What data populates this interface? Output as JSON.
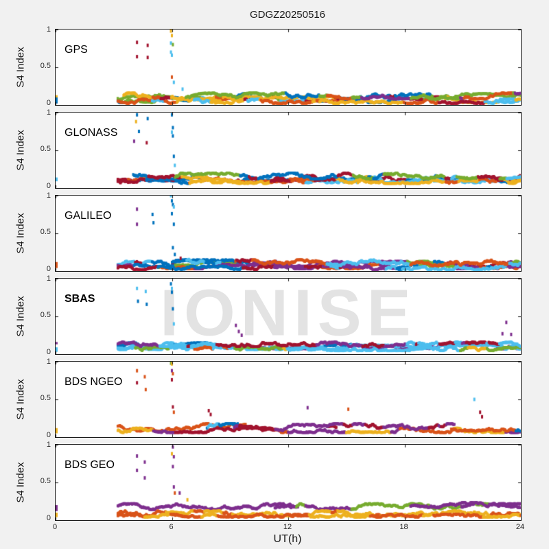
{
  "figure": {
    "title": "GDGZ20250516",
    "watermark": "IONISE",
    "xtick_labels": [
      "0",
      "6",
      "12",
      "18",
      "24"
    ],
    "ytick_labels": [
      "1",
      "0.5",
      "0"
    ]
  },
  "chart_data": {
    "type": "scatter",
    "title": "GDGZ20250516",
    "xlabel": "UT(h)",
    "ylabel": "S4 Index",
    "xlim": [
      0,
      24
    ],
    "ylim": [
      0,
      1
    ],
    "xticks": [
      0,
      6,
      12,
      18,
      24
    ],
    "yticks": [
      0,
      0.5,
      1
    ],
    "grid": false,
    "legend": "none",
    "watermark_text": "IONISE",
    "data_start_hour": 3.2,
    "palette": {
      "blue": "#0072BD",
      "orange": "#D95319",
      "yellow": "#EDB120",
      "purple": "#7E2F8E",
      "green": "#77AC30",
      "lightblue": "#4DBEEE",
      "darkred": "#A2142F"
    },
    "panels": [
      {
        "label": "GPS",
        "label_bold": false,
        "traces": [
          {
            "x0": 3.2,
            "x1": 24,
            "base": 0.1,
            "amp": 0.05,
            "colors": [
              "darkred",
              "darkred",
              "orange",
              "yellow",
              "lightblue",
              "green",
              "purple",
              "blue"
            ]
          },
          {
            "x0": 3.2,
            "x1": 24,
            "base": 0.07,
            "amp": 0.04,
            "colors": [
              "orange",
              "yellow",
              "darkred",
              "lightblue",
              "blue",
              "green"
            ]
          },
          {
            "x0": 3.2,
            "x1": 24,
            "base": 0.05,
            "amp": 0.03,
            "colors": [
              "yellow",
              "lightblue",
              "orange",
              "darkred"
            ]
          },
          {
            "x0": 3.5,
            "x1": 24,
            "base": 0.12,
            "amp": 0.04,
            "colors": [
              "darkred",
              "lightblue",
              "yellow",
              "orange",
              "purple",
              "green",
              "blue"
            ]
          }
        ],
        "edge_cluster": [
          {
            "y0": 0.1,
            "y1": 0.13,
            "color": "yellow"
          },
          {
            "y0": 0.02,
            "y1": 0.1,
            "color": "blue"
          }
        ],
        "outliers": [
          [
            4.2,
            0.83,
            "darkred"
          ],
          [
            4.2,
            0.64,
            "darkred"
          ],
          [
            4.75,
            0.79,
            "darkred"
          ],
          [
            4.75,
            0.63,
            "darkred"
          ],
          [
            5.95,
            0.98,
            "yellow"
          ],
          [
            6.0,
            0.92,
            "yellow"
          ],
          [
            5.95,
            0.82,
            "lightblue"
          ],
          [
            6.05,
            0.8,
            "green"
          ],
          [
            5.95,
            0.7,
            "lightblue"
          ],
          [
            6.0,
            0.66,
            "lightblue"
          ],
          [
            6.0,
            0.37,
            "orange"
          ],
          [
            6.1,
            0.3,
            "lightblue"
          ],
          [
            6.55,
            0.21,
            "lightblue"
          ]
        ]
      },
      {
        "label": "GLONASS",
        "label_bold": false,
        "traces": [
          {
            "x0": 3.2,
            "x1": 24,
            "base": 0.14,
            "amp": 0.05,
            "colors": [
              "darkred",
              "blue",
              "orange",
              "darkred",
              "blue"
            ]
          },
          {
            "x0": 3.2,
            "x1": 24,
            "base": 0.11,
            "amp": 0.04,
            "colors": [
              "blue",
              "darkred",
              "orange",
              "lightblue",
              "yellow"
            ]
          },
          {
            "x0": 3.2,
            "x1": 24,
            "base": 0.09,
            "amp": 0.03,
            "colors": [
              "orange",
              "blue",
              "darkred",
              "yellow"
            ]
          },
          {
            "x0": 4.0,
            "x1": 24,
            "base": 0.16,
            "amp": 0.04,
            "colors": [
              "blue",
              "darkred",
              "purple",
              "lightblue",
              "green"
            ]
          }
        ],
        "edge_cluster": [
          {
            "y0": 0.09,
            "y1": 0.14,
            "color": "lightblue"
          }
        ],
        "outliers": [
          [
            4.2,
            0.97,
            "blue"
          ],
          [
            4.15,
            0.88,
            "yellow"
          ],
          [
            4.3,
            0.75,
            "blue"
          ],
          [
            4.05,
            0.62,
            "purple"
          ],
          [
            4.75,
            0.92,
            "blue"
          ],
          [
            4.7,
            0.6,
            "darkred"
          ],
          [
            6.0,
            0.97,
            "blue"
          ],
          [
            6.05,
            0.8,
            "blue"
          ],
          [
            6.0,
            0.74,
            "lightblue"
          ],
          [
            6.05,
            0.69,
            "blue"
          ],
          [
            6.1,
            0.42,
            "blue"
          ],
          [
            6.15,
            0.3,
            "lightblue"
          ]
        ]
      },
      {
        "label": "GALILEO",
        "label_bold": false,
        "traces": [
          {
            "x0": 3.2,
            "x1": 24,
            "base": 0.09,
            "amp": 0.04,
            "colors": [
              "green",
              "purple",
              "blue",
              "darkred",
              "lightblue"
            ]
          },
          {
            "x0": 3.2,
            "x1": 24,
            "base": 0.06,
            "amp": 0.03,
            "colors": [
              "purple",
              "blue",
              "green",
              "orange"
            ]
          },
          {
            "x0": 3.2,
            "x1": 24,
            "base": 0.04,
            "amp": 0.025,
            "colors": [
              "blue",
              "purple",
              "lightblue",
              "darkred"
            ]
          },
          {
            "x0": 6.0,
            "x1": 24,
            "base": 0.11,
            "amp": 0.04,
            "colors": [
              "lightblue",
              "blue",
              "darkred",
              "yellow",
              "orange"
            ]
          },
          {
            "x0": 6.0,
            "x1": 8.5,
            "base": 0.14,
            "amp": 0.04,
            "colors": [
              "lightblue",
              "blue"
            ]
          }
        ],
        "edge_cluster": [
          {
            "y0": 0.04,
            "y1": 0.12,
            "color": "orange"
          }
        ],
        "outliers": [
          [
            4.2,
            0.82,
            "purple"
          ],
          [
            4.2,
            0.62,
            "purple"
          ],
          [
            5.0,
            0.75,
            "blue"
          ],
          [
            5.05,
            0.64,
            "blue"
          ],
          [
            5.95,
            1.0,
            "lightblue"
          ],
          [
            6.0,
            0.93,
            "blue"
          ],
          [
            6.05,
            0.88,
            "blue"
          ],
          [
            6.1,
            0.85,
            "lightblue"
          ],
          [
            6.0,
            0.76,
            "blue"
          ],
          [
            6.1,
            0.62,
            "blue"
          ],
          [
            6.05,
            0.31,
            "blue"
          ],
          [
            6.15,
            0.22,
            "blue"
          ],
          [
            6.45,
            0.17,
            "darkred"
          ]
        ]
      },
      {
        "label": "SBAS",
        "label_bold": true,
        "traces": [
          {
            "x0": 3.2,
            "x1": 24,
            "base": 0.11,
            "amp": 0.04,
            "colors": [
              "purple",
              "lightblue",
              "purple",
              "blue"
            ]
          },
          {
            "x0": 3.2,
            "x1": 24,
            "base": 0.09,
            "amp": 0.03,
            "colors": [
              "lightblue",
              "lightblue",
              "lightblue",
              "blue"
            ]
          },
          {
            "x0": 3.2,
            "x1": 24,
            "base": 0.07,
            "amp": 0.025,
            "colors": [
              "lightblue",
              "yellow",
              "green",
              "lightblue",
              "orange"
            ]
          },
          {
            "x0": 3.2,
            "x1": 24,
            "base": 0.13,
            "amp": 0.03,
            "colors": [
              "purple",
              "lightblue",
              "darkred"
            ]
          }
        ],
        "edge_cluster": [
          {
            "y0": 0.13,
            "y1": 0.16,
            "color": "purple"
          },
          {
            "y0": 0.03,
            "y1": 0.09,
            "color": "lightblue"
          }
        ],
        "outliers": [
          [
            4.2,
            0.87,
            "lightblue"
          ],
          [
            4.25,
            0.7,
            "blue"
          ],
          [
            4.65,
            0.83,
            "lightblue"
          ],
          [
            4.7,
            0.66,
            "blue"
          ],
          [
            5.95,
            0.93,
            "blue"
          ],
          [
            6.0,
            0.87,
            "lightblue"
          ],
          [
            6.0,
            0.82,
            "blue"
          ],
          [
            6.05,
            0.6,
            "blue"
          ],
          [
            6.1,
            0.4,
            "lightblue"
          ],
          [
            9.3,
            0.38,
            "purple"
          ],
          [
            9.45,
            0.3,
            "purple"
          ],
          [
            9.6,
            0.25,
            "purple"
          ],
          [
            23.25,
            0.42,
            "purple"
          ],
          [
            23.05,
            0.27,
            "purple"
          ],
          [
            23.5,
            0.26,
            "purple"
          ]
        ]
      },
      {
        "label": "BDS NGEO",
        "label_bold": false,
        "traces": [
          {
            "x0": 3.2,
            "x1": 9.8,
            "base": 0.13,
            "amp": 0.05,
            "colors": [
              "orange",
              "orange",
              "darkred"
            ]
          },
          {
            "x0": 3.2,
            "x1": 24,
            "base": 0.09,
            "amp": 0.03,
            "colors": [
              "orange",
              "yellow",
              "darkred",
              "purple"
            ]
          },
          {
            "x0": 7.8,
            "x1": 9.4,
            "base": 0.13,
            "amp": 0.05,
            "colors": [
              "blue",
              "blue",
              "lightblue"
            ]
          },
          {
            "x0": 9.2,
            "x1": 14.5,
            "base": 0.12,
            "amp": 0.05,
            "colors": [
              "darkred",
              "darkred",
              "purple"
            ]
          },
          {
            "x0": 14.0,
            "x1": 20.6,
            "base": 0.13,
            "amp": 0.05,
            "colors": [
              "purple",
              "purple",
              "darkred"
            ]
          },
          {
            "x0": 20.4,
            "x1": 24,
            "base": 0.13,
            "amp": 0.05,
            "colors": [
              "orange",
              "yellow",
              "darkred",
              "blue"
            ]
          }
        ],
        "edge_cluster": [
          {
            "y0": 0.05,
            "y1": 0.12,
            "color": "yellow"
          }
        ],
        "outliers": [
          [
            4.2,
            0.88,
            "orange"
          ],
          [
            4.2,
            0.72,
            "darkred"
          ],
          [
            4.6,
            0.8,
            "orange"
          ],
          [
            4.65,
            0.63,
            "orange"
          ],
          [
            5.95,
            0.98,
            "green"
          ],
          [
            6.0,
            0.97,
            "yellow"
          ],
          [
            6.0,
            0.88,
            "purple"
          ],
          [
            6.05,
            0.84,
            "orange"
          ],
          [
            6.0,
            0.76,
            "darkred"
          ],
          [
            6.05,
            0.4,
            "darkred"
          ],
          [
            6.1,
            0.33,
            "orange"
          ],
          [
            7.9,
            0.35,
            "darkred"
          ],
          [
            8.0,
            0.3,
            "darkred"
          ],
          [
            13.0,
            0.39,
            "purple"
          ],
          [
            15.1,
            0.37,
            "orange"
          ],
          [
            21.6,
            0.5,
            "lightblue"
          ],
          [
            21.9,
            0.33,
            "darkred"
          ],
          [
            22.0,
            0.27,
            "darkred"
          ]
        ]
      },
      {
        "label": "BDS GEO",
        "label_bold": false,
        "traces": [
          {
            "x0": 3.2,
            "x1": 12.5,
            "base": 0.18,
            "amp": 0.04,
            "colors": [
              "purple"
            ]
          },
          {
            "x0": 11.3,
            "x1": 24,
            "base": 0.18,
            "amp": 0.04,
            "colors": [
              "green",
              "green",
              "purple"
            ]
          },
          {
            "x0": 18.3,
            "x1": 24,
            "base": 0.2,
            "amp": 0.035,
            "colors": [
              "purple"
            ]
          },
          {
            "x0": 3.2,
            "x1": 24,
            "base": 0.09,
            "amp": 0.035,
            "colors": [
              "yellow",
              "yellow",
              "orange"
            ]
          },
          {
            "x0": 3.2,
            "x1": 24,
            "base": 0.06,
            "amp": 0.02,
            "colors": [
              "orange",
              "yellow"
            ]
          }
        ],
        "edge_cluster": [
          {
            "y0": 0.12,
            "y1": 0.2,
            "color": "purple"
          },
          {
            "y0": 0.04,
            "y1": 0.1,
            "color": "yellow"
          }
        ],
        "outliers": [
          [
            4.2,
            0.85,
            "purple"
          ],
          [
            4.2,
            0.66,
            "purple"
          ],
          [
            4.6,
            0.77,
            "purple"
          ],
          [
            4.6,
            0.56,
            "purple"
          ],
          [
            6.05,
            0.97,
            "purple"
          ],
          [
            6.0,
            0.88,
            "yellow"
          ],
          [
            6.1,
            0.84,
            "purple"
          ],
          [
            6.05,
            0.71,
            "purple"
          ],
          [
            6.1,
            0.44,
            "purple"
          ],
          [
            6.15,
            0.36,
            "orange"
          ],
          [
            6.4,
            0.36,
            "purple"
          ],
          [
            6.8,
            0.27,
            "yellow"
          ]
        ]
      }
    ]
  }
}
